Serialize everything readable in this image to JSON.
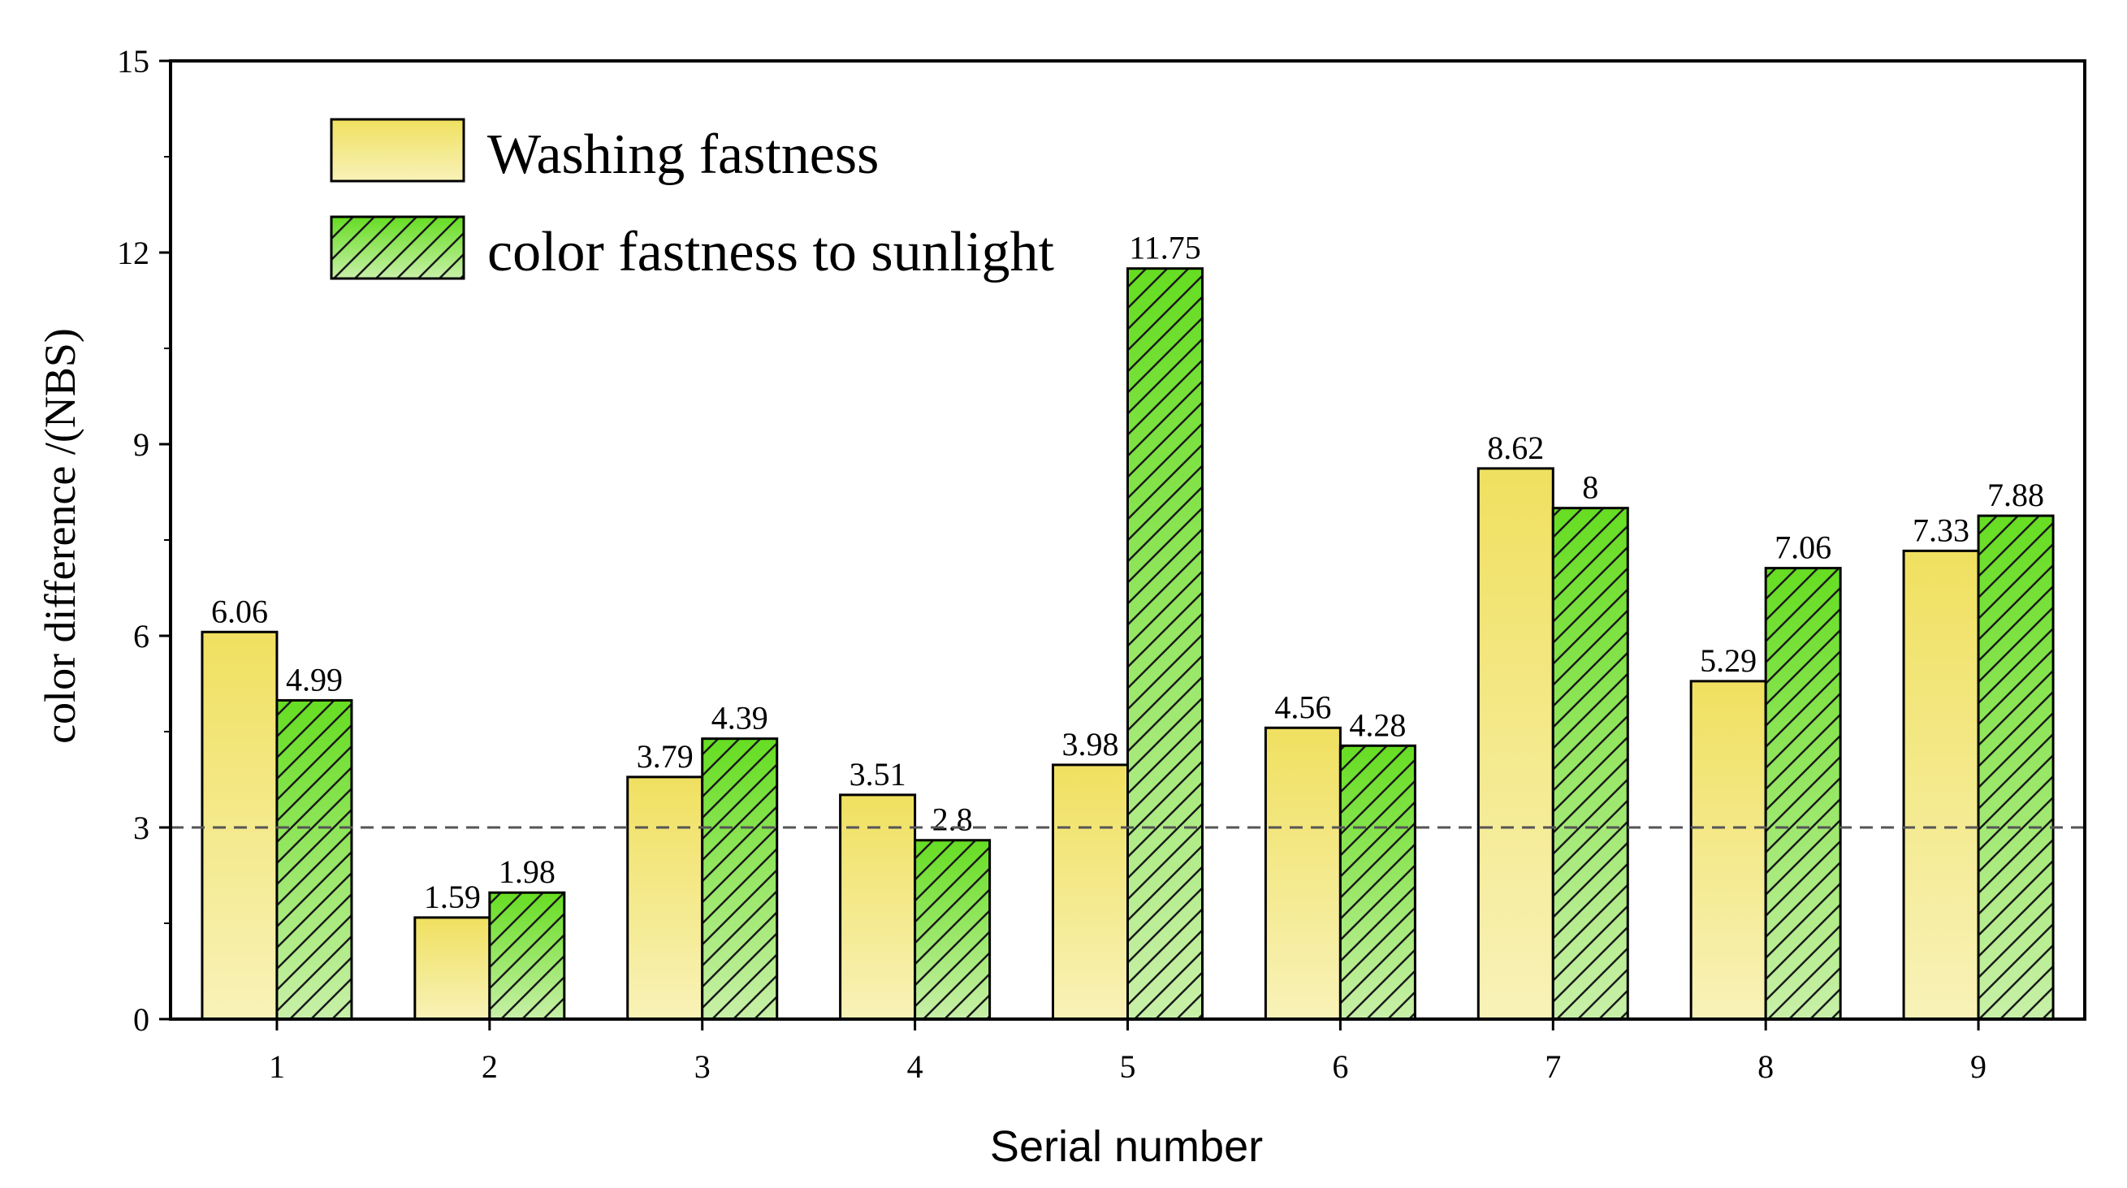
{
  "chart_data": {
    "type": "bar",
    "title": "",
    "xlabel": "Serial number",
    "ylabel": "color difference /(NBS)",
    "categories": [
      "1",
      "2",
      "3",
      "4",
      "5",
      "6",
      "7",
      "8",
      "9"
    ],
    "series": [
      {
        "name": "Washing fastness",
        "values": [
          6.06,
          1.59,
          3.79,
          3.51,
          3.98,
          4.56,
          8.62,
          5.29,
          7.33
        ],
        "labels": [
          "6.06",
          "1.59",
          "3.79",
          "3.51",
          "3.98",
          "4.56",
          "8.62",
          "5.29",
          "7.33"
        ],
        "color_top": "#f0e060",
        "color_bottom": "#f8f2b8",
        "pattern": "none"
      },
      {
        "name": "color fastness to sunlight",
        "values": [
          4.99,
          1.98,
          4.39,
          2.8,
          11.75,
          4.28,
          8,
          7.06,
          7.88
        ],
        "labels": [
          "4.99",
          "1.98",
          "4.39",
          "2.8",
          "11.75",
          "4.28",
          "8",
          "7.06",
          "7.88"
        ],
        "color_top": "#66dd22",
        "color_bottom": "#c8f0a8",
        "pattern": "diagonal-hatch"
      }
    ],
    "ylim": [
      0,
      15
    ],
    "yticks": [
      0,
      3,
      6,
      9,
      12,
      15
    ],
    "ytick_labels": [
      "0",
      "3",
      "6",
      "9",
      "12",
      "15"
    ],
    "reference_line": {
      "value": 3,
      "style": "dashed"
    },
    "grid": false,
    "legend_position": "top-left",
    "colors": {
      "axis": "#000000",
      "bar_outline": "#000000",
      "reference_line": "#555555"
    }
  }
}
